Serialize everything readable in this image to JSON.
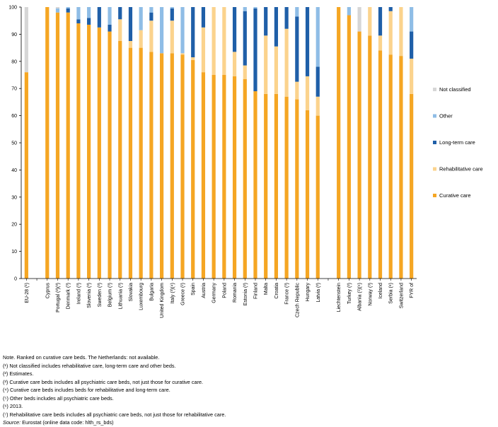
{
  "chart_data": {
    "type": "bar",
    "stacked": true,
    "ylim": [
      0,
      100
    ],
    "yticks": [
      0,
      10,
      20,
      30,
      40,
      50,
      60,
      70,
      80,
      90,
      100
    ],
    "grid": false,
    "legend_position": "right",
    "categories": [
      "EU-28 (¹)",
      "",
      "Cyprus",
      "Portugal (²)(³)",
      "Denmark (³)",
      "Ireland (³)",
      "Slovenia (³)",
      "Sweden (³)",
      "Belgium (³)",
      "Lithuania (³)",
      "Slovakia",
      "Luxembourg",
      "Bulgaria",
      "United Kingdom",
      "Italy (³)(⁴)",
      "Greece (²)",
      "Spain",
      "Austria",
      "Germany",
      "Poland",
      "Romania",
      "Estonia (²)",
      "Finland",
      "Malta",
      "Croatia",
      "France (³)",
      "Czech Republic",
      "Hungary",
      "Latvia (²)",
      "",
      "Liechtenstein",
      "Turkey (²)",
      "Albania (¹)(⁵)",
      "Norway (³)",
      "Iceland",
      "Serbia (⁶)",
      "Switzerland",
      "FYR of"
    ],
    "series": [
      {
        "name": "Curative care",
        "color": "#f5a623",
        "values": [
          76,
          null,
          100,
          98,
          98,
          94,
          93.5,
          92.5,
          91,
          87.5,
          85,
          85,
          83.5,
          83,
          83,
          82.5,
          80.5,
          76,
          75,
          75,
          74.5,
          73.5,
          69,
          68,
          68,
          67,
          66,
          62,
          60,
          null,
          100,
          97,
          91,
          89.5,
          84,
          82.5,
          82,
          68
        ]
      },
      {
        "name": "Rehabilitative care",
        "color": "#fbd38d",
        "values": [
          0,
          null,
          0,
          0,
          0,
          0,
          0,
          0,
          0,
          8,
          2.5,
          6.5,
          11.5,
          0,
          12,
          0.5,
          1,
          16.5,
          25,
          25,
          9,
          5,
          0,
          21.5,
          17.5,
          25,
          6.5,
          12.5,
          7,
          null,
          0,
          0,
          0,
          10.5,
          5.5,
          16,
          18,
          13
        ]
      },
      {
        "name": "Long-term care",
        "color": "#1f5fa8",
        "values": [
          0,
          null,
          0,
          0,
          1.5,
          1.5,
          2.5,
          7.5,
          2.5,
          4.5,
          12.5,
          0,
          3,
          0,
          4.5,
          0,
          18.5,
          7.5,
          0,
          0,
          16.5,
          20,
          30.5,
          10.5,
          14.5,
          8,
          24,
          25.5,
          11,
          null,
          0,
          0,
          0,
          0,
          10.5,
          1.5,
          0,
          10
        ]
      },
      {
        "name": "Other",
        "color": "#8fbde6",
        "values": [
          0,
          null,
          0,
          1.5,
          0.5,
          4.5,
          4,
          0,
          6.5,
          0,
          0,
          8.5,
          2,
          17,
          0.5,
          17,
          0,
          0,
          0,
          0,
          0,
          1.5,
          0.5,
          0,
          0,
          0,
          3.5,
          0,
          22,
          null,
          0,
          3,
          0,
          0,
          0,
          0,
          0,
          9
        ]
      },
      {
        "name": "Not classified",
        "color": "#d6d6d6",
        "values": [
          24,
          null,
          0,
          0.5,
          0,
          0,
          0,
          0,
          0,
          0,
          0,
          0,
          0,
          0,
          0,
          0,
          0,
          0,
          0,
          0,
          0,
          0,
          0,
          0,
          0,
          0,
          0,
          0,
          0,
          null,
          0,
          0,
          9,
          0,
          0,
          0,
          0,
          0
        ]
      }
    ],
    "legend_order": [
      "Not classified",
      "Other",
      "Long-term care",
      "Rehabilitative care",
      "Curative care"
    ]
  },
  "notes": [
    "Note. Ranked on curative care beds. The Netherlands: not available.",
    "(¹) Not classified includes rehabilitative care, long-term care and other beds.",
    "(²) Estimates.",
    "(³) Curative care beds includes all psychiatric care beds, not just those for curative care.",
    "(⁴) Curative care beds includes beds for rehabilitative and long-term care.",
    "(⁵) Other beds includes all psychiatric care beds.",
    "(⁶) 2013.",
    "(⁷) Rehabilitative care beds includes all psychiatric care beds, not just those for rehabilitative care."
  ],
  "source": {
    "label": "Source:",
    "text": " Eurostat (online data code: hlth_rs_bds)"
  }
}
